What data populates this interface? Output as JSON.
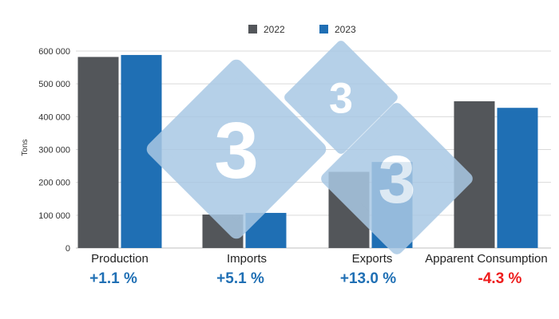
{
  "colors": {
    "series_2022": "#53565a",
    "series_2023": "#1f6fb4",
    "positive": "#1f6fb4",
    "negative": "#ee1c1c",
    "gridline": "#d9d9d9",
    "watermark": "#a9c8e4"
  },
  "watermark": {
    "glyph": "3"
  },
  "chart_data": {
    "type": "bar",
    "categories": [
      "Production",
      "Imports",
      "Exports",
      "Apparent Consumption"
    ],
    "series": [
      {
        "name": "2022",
        "values": [
          582000,
          102000,
          232000,
          447000
        ]
      },
      {
        "name": "2023",
        "values": [
          588000,
          107000,
          262000,
          427000
        ]
      }
    ],
    "changes": [
      "+1.1 %",
      "+5.1 %",
      "+13.0 %",
      "-4.3 %"
    ],
    "change_signs": [
      "positive",
      "positive",
      "positive",
      "negative"
    ],
    "ylabel": "Tons",
    "xlabel": "",
    "ylim": [
      0,
      600000
    ],
    "yticks": [
      0,
      100000,
      200000,
      300000,
      400000,
      500000,
      600000
    ],
    "ytick_labels": [
      "0",
      "100 000",
      "200 000",
      "300 000",
      "400 000",
      "500 000",
      "600 000"
    ],
    "grid": true,
    "legend_position": "top-center"
  }
}
